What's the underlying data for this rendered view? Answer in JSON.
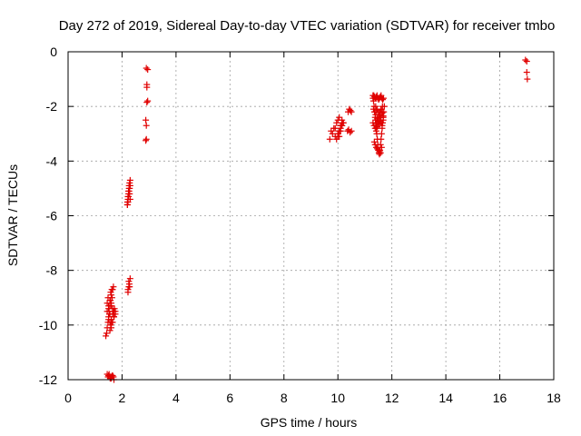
{
  "chart_data": {
    "type": "scatter",
    "title": "Day 272 of 2019, Sidereal Day-to-day VTEC variation (SDTVAR) for receiver tmbo",
    "xlabel": "GPS time / hours",
    "ylabel": "SDTVAR / TECUs",
    "xlim": [
      0,
      18
    ],
    "ylim": [
      -12,
      0
    ],
    "xticks": [
      "0",
      "2",
      "4",
      "6",
      "8",
      "10",
      "12",
      "14",
      "16",
      "18"
    ],
    "yticks": [
      "0",
      "-2",
      "-4",
      "-6",
      "-8",
      "-10",
      "-12"
    ],
    "grid": true,
    "marker": "+",
    "color": "#e00000",
    "series": [
      {
        "name": "SDTVAR",
        "x": [
          1.4,
          1.43,
          1.45,
          1.48,
          1.5,
          1.52,
          1.55,
          1.57,
          1.6,
          1.62,
          1.45,
          1.48,
          1.5,
          1.53,
          1.55,
          1.58,
          1.6,
          1.63,
          1.65,
          1.68,
          1.7,
          1.55,
          1.58,
          1.6,
          1.62,
          1.65,
          1.68,
          1.7,
          1.72,
          1.75,
          1.5,
          1.55,
          1.6,
          1.65,
          1.7,
          1.75,
          1.45,
          1.5,
          1.55,
          1.6,
          1.65,
          1.7,
          1.48,
          1.52,
          1.56,
          1.6,
          1.64,
          1.68,
          1.45,
          1.5,
          1.55,
          1.6,
          1.65,
          1.7,
          2.2,
          2.22,
          2.24,
          2.26,
          2.28,
          2.3,
          2.2,
          2.22,
          2.24,
          2.26,
          2.28,
          2.3,
          2.2,
          2.22,
          2.24,
          2.26,
          2.28,
          2.3,
          2.22,
          2.25,
          2.27,
          2.3,
          2.22,
          2.25,
          2.28,
          2.9,
          2.92,
          2.95,
          2.88,
          2.9,
          2.92,
          2.9,
          2.95,
          2.88,
          2.92,
          9.7,
          9.75,
          9.8,
          9.85,
          9.9,
          9.95,
          10.0,
          10.05,
          10.1,
          10.15,
          9.9,
          9.95,
          10.0,
          10.05,
          10.1,
          10.15,
          10.2,
          10.0,
          10.05,
          10.1,
          10.15,
          10.2,
          10.0,
          10.05,
          10.1,
          10.15,
          10.38,
          10.42,
          10.46,
          10.5,
          10.36,
          10.4,
          10.45,
          10.5,
          11.3,
          11.32,
          11.34,
          11.36,
          11.38,
          11.4,
          11.42,
          11.44,
          11.46,
          11.48,
          11.5,
          11.52,
          11.54,
          11.56,
          11.58,
          11.6,
          11.62,
          11.64,
          11.66,
          11.68,
          11.7,
          11.72,
          11.3,
          11.33,
          11.36,
          11.39,
          11.42,
          11.45,
          11.48,
          11.51,
          11.54,
          11.57,
          11.6,
          11.63,
          11.66,
          11.69,
          11.32,
          11.36,
          11.4,
          11.44,
          11.48,
          11.52,
          11.56,
          11.6,
          11.64,
          11.68,
          11.4,
          11.43,
          11.46,
          11.49,
          11.52,
          11.55,
          11.58,
          11.61,
          11.64,
          11.35,
          11.38,
          11.42,
          11.46,
          11.5,
          11.54,
          11.58,
          11.62,
          11.55,
          11.6,
          11.65,
          11.68,
          11.4,
          11.45,
          11.5,
          11.55,
          11.6,
          11.65,
          11.3,
          11.34,
          11.38,
          11.42,
          11.46,
          11.5,
          11.54,
          16.95,
          17.0,
          17.0,
          17.02
        ],
        "y": [
          -10.4,
          -10.3,
          -10.1,
          -9.9,
          -9.7,
          -9.5,
          -9.3,
          -9.1,
          -8.9,
          -8.7,
          -9.2,
          -9.0,
          -9.4,
          -9.6,
          -9.1,
          -8.8,
          -9.3,
          -9.0,
          -8.7,
          -8.6,
          -9.5,
          -10.2,
          -10.0,
          -9.8,
          -9.9,
          -9.6,
          -9.5,
          -9.7,
          -9.4,
          -9.5,
          -9.8,
          -9.9,
          -10.1,
          -9.9,
          -9.7,
          -9.6,
          -11.8,
          -11.85,
          -11.9,
          -11.95,
          -11.85,
          -12.0,
          -11.9,
          -11.8,
          -11.95,
          -11.9,
          -11.85,
          -11.9,
          -9.5,
          -9.3,
          -9.6,
          -9.2,
          -9.4,
          -9.7,
          -5.6,
          -5.4,
          -5.2,
          -5.0,
          -4.8,
          -4.7,
          -5.5,
          -5.3,
          -5.1,
          -4.9,
          -5.2,
          -5.4,
          -5.6,
          -5.5,
          -5.3,
          -5.1,
          -5.0,
          -4.9,
          -8.7,
          -8.6,
          -8.5,
          -8.3,
          -8.8,
          -8.4,
          -8.6,
          -0.6,
          -1.2,
          -1.8,
          -2.5,
          -3.2,
          -1.3,
          -2.7,
          -0.65,
          -3.25,
          -1.85,
          -3.2,
          -2.9,
          -3.0,
          -2.8,
          -3.1,
          -3.2,
          -3.0,
          -2.9,
          -2.7,
          -2.6,
          -2.8,
          -2.6,
          -2.5,
          -2.4,
          -2.7,
          -2.5,
          -2.6,
          -3.1,
          -2.9,
          -2.8,
          -2.7,
          -2.6,
          -3.0,
          -3.1,
          -2.9,
          -2.7,
          -2.2,
          -2.1,
          -2.15,
          -2.2,
          -2.9,
          -2.85,
          -2.95,
          -2.9,
          -1.6,
          -1.8,
          -2.0,
          -2.2,
          -2.4,
          -2.6,
          -2.8,
          -3.0,
          -3.2,
          -3.4,
          -3.6,
          -3.7,
          -3.75,
          -3.6,
          -3.4,
          -3.2,
          -3.0,
          -2.8,
          -2.6,
          -2.4,
          -2.2,
          -2.0,
          -1.7,
          -1.6,
          -1.65,
          -1.7,
          -1.65,
          -1.6,
          -1.7,
          -1.75,
          -1.7,
          -1.65,
          -1.6,
          -1.7,
          -1.75,
          -1.7,
          -2.1,
          -2.2,
          -2.3,
          -2.15,
          -2.4,
          -2.3,
          -2.2,
          -2.1,
          -2.25,
          -2.35,
          -2.5,
          -2.6,
          -2.45,
          -2.55,
          -2.65,
          -2.5,
          -2.4,
          -2.6,
          -2.7,
          -3.3,
          -3.4,
          -3.5,
          -3.55,
          -3.6,
          -3.65,
          -3.7,
          -3.5,
          -2.3,
          -2.4,
          -2.2,
          -2.5,
          -2.0,
          -2.1,
          -2.2,
          -2.3,
          -2.1,
          -2.0,
          -2.6,
          -2.7,
          -2.8,
          -2.9,
          -2.75,
          -2.65,
          -2.55,
          -0.3,
          -0.35,
          -0.75,
          -1.0
        ]
      }
    ]
  }
}
